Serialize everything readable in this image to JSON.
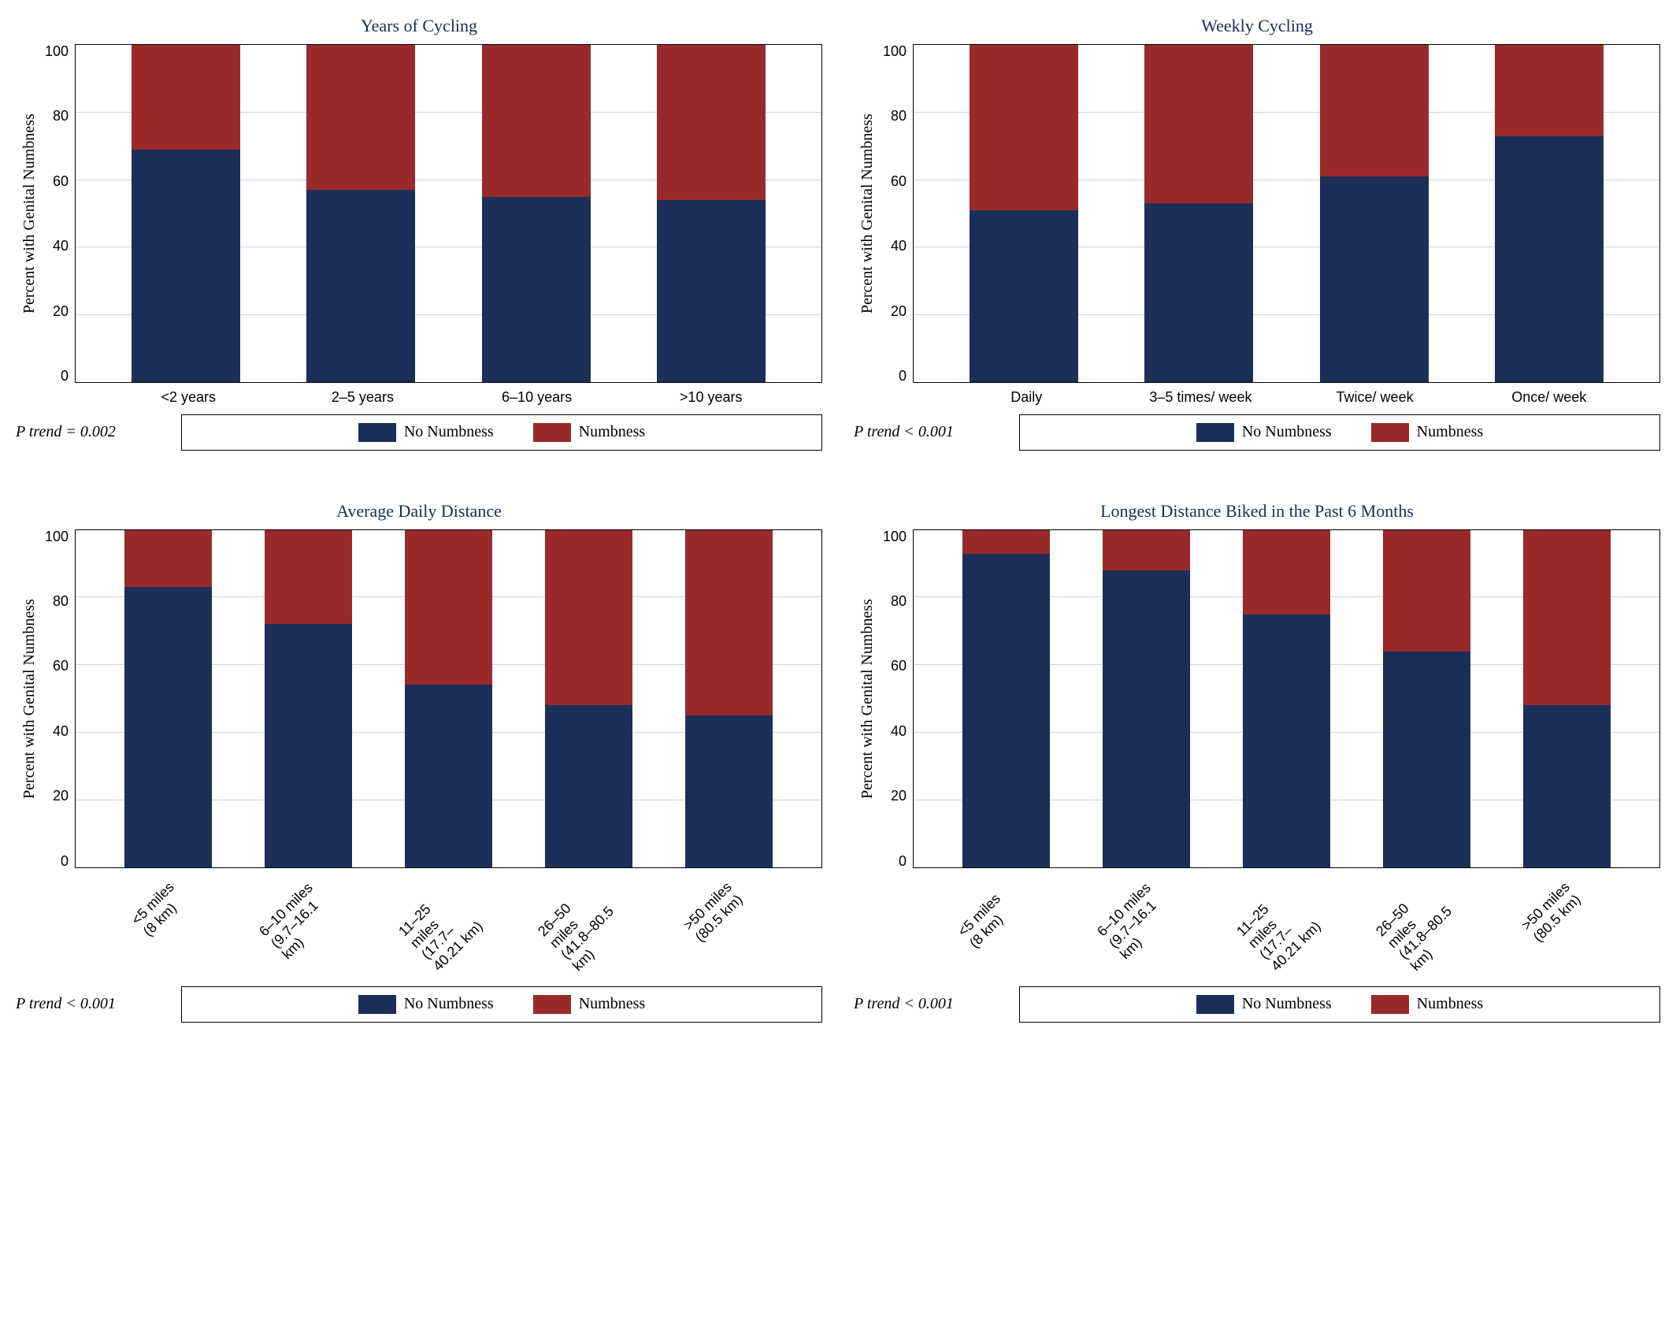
{
  "colors": {
    "no_numbness": "#1c2f59",
    "numbness": "#9a2a2a",
    "title": "#1a2e52",
    "grid": "#c8d4e0",
    "border": "#000000",
    "bg": "#ffffff"
  },
  "shared": {
    "ylabel": "Percent with Genital Numbness",
    "ylim": [
      0,
      100
    ],
    "ytick_step": 20,
    "yticks": [
      0,
      20,
      40,
      60,
      80,
      100
    ],
    "legend": {
      "no_numbness": "No Numbness",
      "numbness": "Numbness"
    }
  },
  "panels": [
    {
      "id": "years",
      "title": "Years of Cycling",
      "p_trend": "P trend = 0.002",
      "rotated_x": false,
      "categories": [
        "<2 years",
        "2–5 years",
        "6–10 years",
        ">10 years"
      ],
      "no_numbness_pct": [
        69,
        57,
        55,
        54
      ]
    },
    {
      "id": "weekly",
      "title": "Weekly Cycling",
      "p_trend": "P trend < 0.001",
      "rotated_x": false,
      "categories": [
        "Daily",
        "3–5 times/ week",
        "Twice/ week",
        "Once/ week"
      ],
      "no_numbness_pct": [
        51,
        53,
        61,
        73
      ]
    },
    {
      "id": "distance",
      "title": "Average Daily Distance",
      "p_trend": "P trend < 0.001",
      "rotated_x": true,
      "categories": [
        "<5 miles\n(8 km)",
        "6–10 miles\n(9.7–16.1 km)",
        "11–25 miles\n(17.7–40.21 km)",
        "26–50 miles\n(41.8–80.5 km)",
        ">50 miles\n(80.5 km)"
      ],
      "no_numbness_pct": [
        83,
        72,
        54,
        48,
        45
      ]
    },
    {
      "id": "longest",
      "title": "Longest Distance Biked in the Past 6 Months",
      "p_trend": "P trend < 0.001",
      "rotated_x": true,
      "categories": [
        "<5 miles (8 km)",
        "6–10 miles\n(9.7–16.1 km)",
        "11–25 miles\n(17.7–40.21 km)",
        "26–50 miles\n(41.8–80.5 km)",
        ">50 miles\n(80.5 km)"
      ],
      "no_numbness_pct": [
        93,
        88,
        75,
        64,
        48
      ]
    }
  ]
}
